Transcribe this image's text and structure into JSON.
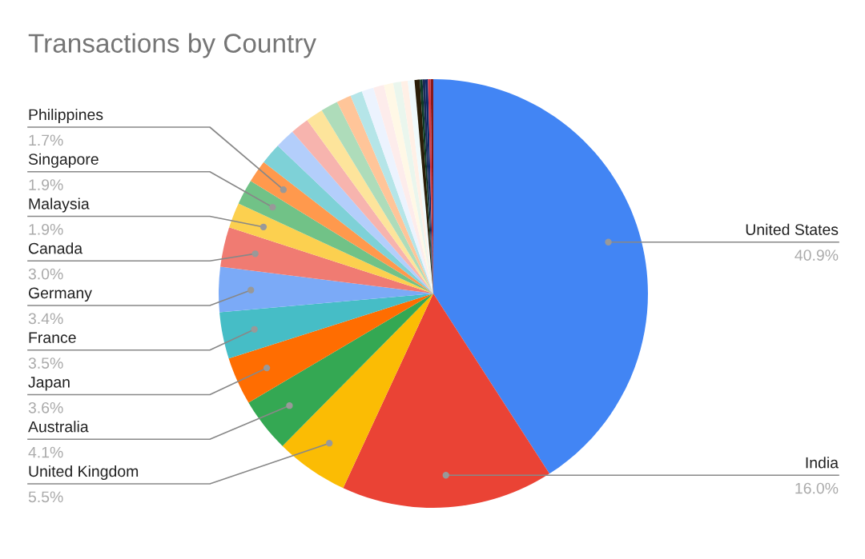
{
  "chart_data": {
    "type": "pie",
    "title": "Transactions by Country",
    "categories": [
      "United States",
      "India",
      "United Kingdom",
      "Australia",
      "Japan",
      "France",
      "Germany",
      "Canada",
      "Malaysia",
      "Singapore",
      "Philippines",
      null,
      null,
      null,
      null,
      null,
      null,
      null,
      null,
      null,
      null,
      null,
      null,
      null,
      null,
      null,
      null,
      null,
      null,
      null
    ],
    "values": [
      40.9,
      16.0,
      5.5,
      4.1,
      3.6,
      3.5,
      3.4,
      3.0,
      1.9,
      1.9,
      1.7,
      1.6,
      1.5,
      1.4,
      1.3,
      1.3,
      1.1,
      0.9,
      0.9,
      0.8,
      0.7,
      0.6,
      0.5,
      0.5,
      0.4,
      0.2,
      0.2,
      0.2,
      0.2,
      0.2
    ],
    "value_labels": [
      "40.9%",
      "16.0%",
      "5.5%",
      "4.1%",
      "3.6%",
      "3.5%",
      "3.4%",
      "3.0%",
      "1.9%",
      "1.9%",
      "1.7%",
      null,
      null,
      null,
      null,
      null,
      null,
      null,
      null,
      null,
      null,
      null,
      null,
      null,
      null,
      null,
      null,
      null,
      null,
      null
    ],
    "colors": [
      "#4285f4",
      "#ea4335",
      "#fbbc04",
      "#34a853",
      "#ff6d01",
      "#46bdc6",
      "#7baaf7",
      "#f07b72",
      "#fcd04f",
      "#71c287",
      "#ff994d",
      "#7ed1d7",
      "#b3cefb",
      "#f7b4ae",
      "#fde49b",
      "#aedcba",
      "#ffc599",
      "#b5e5e8",
      "#ecf3fe",
      "#fdeceb",
      "#fff8e6",
      "#eaf6ed",
      "#fff0e6",
      "#f0fafb",
      "#2a1e08",
      "#0d3b26",
      "#1a2a57",
      "#0b2a6b",
      "#d33a4a",
      "#8a1a1a"
    ],
    "legend": false
  }
}
